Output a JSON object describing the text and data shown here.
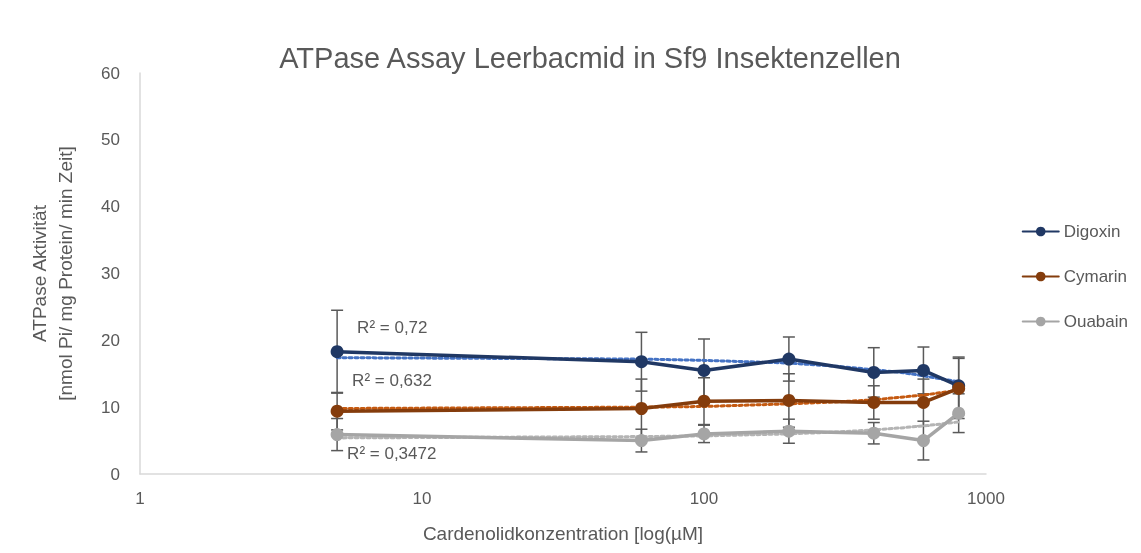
{
  "chart_data": {
    "type": "line",
    "title": "ATPase Assay Leerbacmid in Sf9 Insektenzellen",
    "xlabel": "Cardenolidkonzentration [log(µM]",
    "ylabel": "ATPase Aktivität\n[nmol Pi/ mg Protein/ min Zeit]",
    "x": [
      5,
      60,
      100,
      200,
      400,
      600,
      800
    ],
    "series": [
      {
        "name": "Digoxin",
        "color": "#203864",
        "values": [
          18.3,
          16.8,
          15.5,
          17.2,
          15.2,
          15.5,
          13.2
        ],
        "errors": [
          6.2,
          4.4,
          4.7,
          3.3,
          3.7,
          3.5,
          4.3
        ]
      },
      {
        "name": "Cymarin",
        "color": "#843c0c",
        "values": [
          9.4,
          9.8,
          10.9,
          11.0,
          10.7,
          10.7,
          12.8
        ],
        "errors": [
          2.8,
          4.4,
          3.5,
          4.0,
          2.5,
          3.5,
          4.5
        ]
      },
      {
        "name": "Ouabain",
        "color": "#a5a5a5",
        "values": [
          5.9,
          5.0,
          6.0,
          6.4,
          6.1,
          5.0,
          9.1
        ],
        "errors": [
          2.4,
          1.7,
          1.3,
          1.8,
          1.6,
          2.9,
          2.9
        ]
      },
      {
        "type": "line",
        "color": "#4472c4",
        "line_style": "dotted",
        "marker": "none",
        "x": [
          5,
          60,
          100,
          200,
          300,
          400,
          500,
          600,
          700,
          800
        ],
        "values": [
          17.4,
          17.2,
          17.0,
          16.6,
          16.1,
          15.6,
          15.2,
          14.7,
          14.2,
          13.8
        ]
      },
      {
        "type": "line",
        "color": "#c55a11",
        "line_style": "dotted",
        "marker": "none",
        "x": [
          5,
          60,
          100,
          200,
          300,
          400,
          500,
          600,
          700,
          800
        ],
        "values": [
          9.8,
          10.0,
          10.1,
          10.5,
          10.8,
          11.1,
          11.5,
          11.8,
          12.2,
          12.5
        ]
      },
      {
        "type": "line",
        "color": "#b4b4b4",
        "line_style": "dotted",
        "marker": "none",
        "x": [
          5,
          60,
          100,
          200,
          300,
          400,
          500,
          600,
          700,
          800
        ],
        "values": [
          5.4,
          5.6,
          5.7,
          6.0,
          6.3,
          6.6,
          6.9,
          7.2,
          7.5,
          7.8
        ]
      }
    ],
    "annotations": [
      "R² = 0,72",
      "R² = 0,632",
      "R² = 0,3472"
    ],
    "log": "x",
    "xlim": [
      1,
      1000
    ],
    "xticks": [
      1,
      10,
      100,
      1000
    ],
    "ylim": [
      0,
      60
    ],
    "yticks": [
      0,
      10,
      20,
      30,
      40,
      50,
      60
    ],
    "grid": false,
    "legend": "right",
    "marker": "circle",
    "line_style": "solid"
  }
}
